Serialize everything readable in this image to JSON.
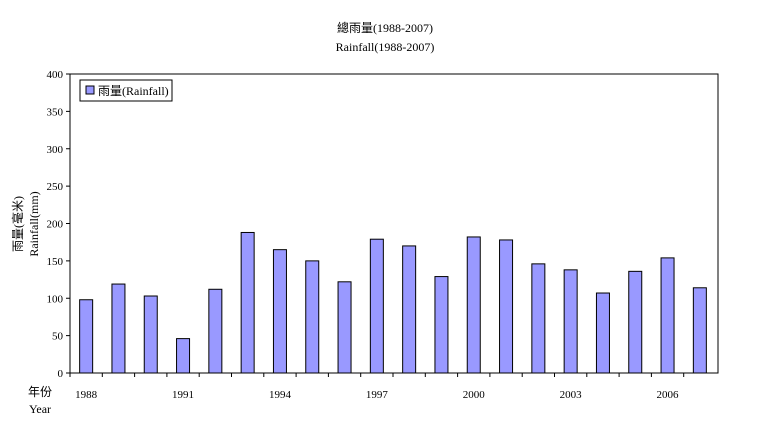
{
  "chart_data": {
    "type": "bar",
    "title": "總雨量(1988-2007)",
    "subtitle": "Rainfall(1988-2007)",
    "ylabel_zh": "雨量(毫米)",
    "ylabel_en": "Rainfall(mm)",
    "xlabel_zh": "年份",
    "xlabel_en": "Year",
    "ylim": [
      0,
      400
    ],
    "yticks": [
      0,
      50,
      100,
      150,
      200,
      250,
      300,
      350,
      400
    ],
    "legend_position": "top-left",
    "grid": false,
    "bar_color": "#9999ff",
    "bar_border": "#000000",
    "categories": [
      "1988",
      "1989",
      "1990",
      "1991",
      "1992",
      "1993",
      "1994",
      "1995",
      "1996",
      "1997",
      "1998",
      "1999",
      "2000",
      "2001",
      "2002",
      "2003",
      "2004",
      "2005",
      "2006",
      "2007"
    ],
    "x_tick_labels": [
      "1988",
      "",
      "",
      "1991",
      "",
      "",
      "1994",
      "",
      "",
      "1997",
      "",
      "",
      "2000",
      "",
      "",
      "2003",
      "",
      "",
      "2006",
      ""
    ],
    "series": [
      {
        "name": "雨量(Rainfall)",
        "values": [
          98,
          119,
          103,
          46,
          112,
          188,
          165,
          150,
          122,
          179,
          170,
          129,
          182,
          178,
          146,
          138,
          107,
          136,
          154,
          114
        ]
      }
    ]
  }
}
